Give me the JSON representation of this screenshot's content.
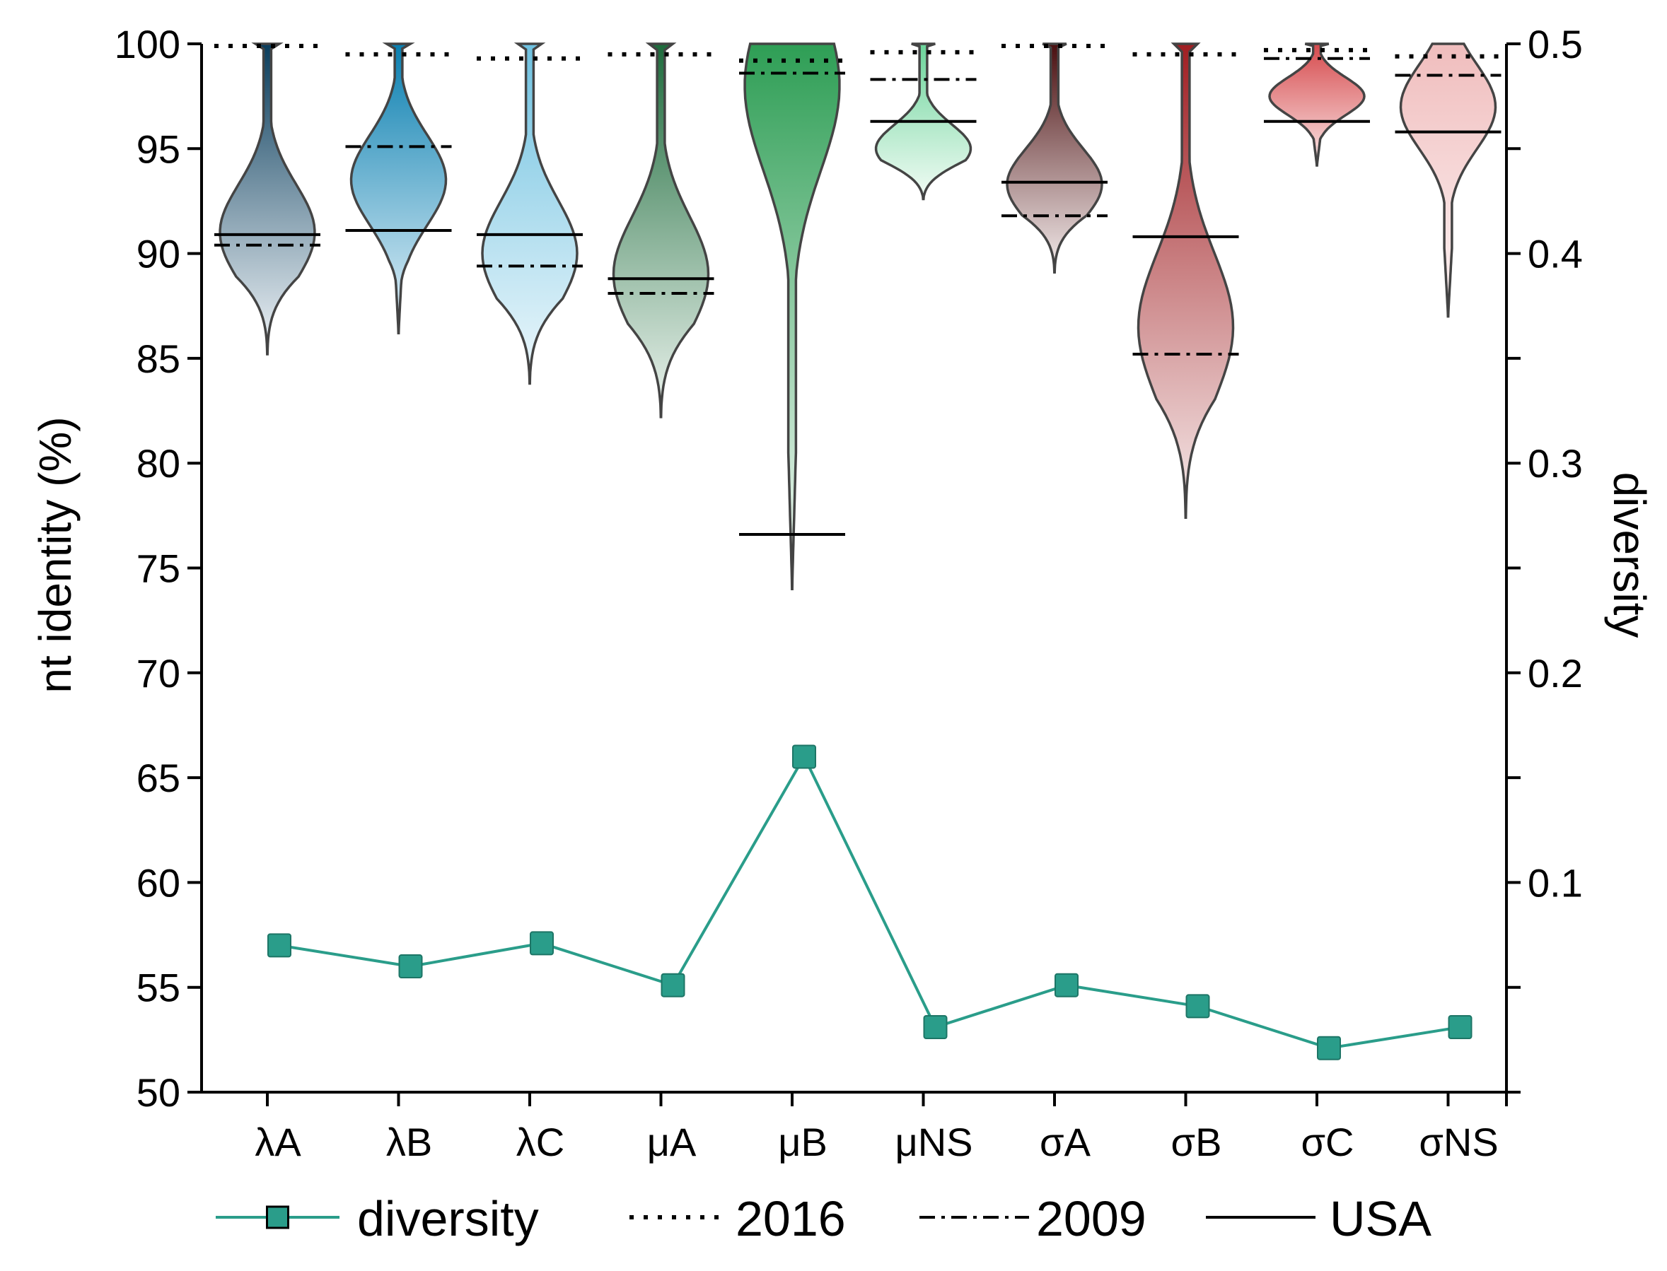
{
  "chart_data": {
    "type": "violin",
    "categories": [
      "λA",
      "λB",
      "λC",
      "μA",
      "μB",
      "μNS",
      "σA",
      "σB",
      "σC",
      "σNS"
    ],
    "y_left": {
      "label": "nt identity (%)",
      "range": [
        50,
        100
      ],
      "ticks": [
        "50",
        "55",
        "60",
        "65",
        "70",
        "75",
        "80",
        "85",
        "90",
        "95",
        "100"
      ]
    },
    "y_right": {
      "label": "diversity",
      "range": [
        0,
        0.5
      ],
      "ticks": [
        "0.1",
        "0.2",
        "0.3",
        "0.4",
        "0.5"
      ]
    },
    "violins": [
      {
        "category": "λA",
        "min": 85.2,
        "max": 100,
        "mode": 91.0,
        "color_top": "#0a3d5c",
        "color_bottom": "#f2f6f9"
      },
      {
        "category": "λB",
        "min": 86.2,
        "max": 100,
        "mode": 93.5,
        "color_top": "#0a7fb0",
        "color_bottom": "#e6f3fa"
      },
      {
        "category": "λC",
        "min": 83.8,
        "max": 100,
        "mode": 90.0,
        "color_top": "#6ec1e0",
        "color_bottom": "#eef8fc"
      },
      {
        "category": "μA",
        "min": 82.2,
        "max": 100,
        "mode": 89.0,
        "color_top": "#1e6b3c",
        "color_bottom": "#eef5f0"
      },
      {
        "category": "μB",
        "min": 74.0,
        "max": 100,
        "mode": 98.0,
        "color_top": "#2e9e55",
        "color_bottom": "#f7fcf8"
      },
      {
        "category": "μNS",
        "min": 92.6,
        "max": 100,
        "mode": 95.0,
        "color_top": "#6bd49a",
        "color_bottom": "#f3fcf6"
      },
      {
        "category": "σA",
        "min": 89.1,
        "max": 100,
        "mode": 93.3,
        "color_top": "#4a0f10",
        "color_bottom": "#f5eeee"
      },
      {
        "category": "σB",
        "min": 77.4,
        "max": 100,
        "mode": 86.5,
        "color_top": "#a01e22",
        "color_bottom": "#f7eded"
      },
      {
        "category": "σC",
        "min": 94.2,
        "max": 100,
        "mode": 97.5,
        "color_top": "#d64a4d",
        "color_bottom": "#fbeaea"
      },
      {
        "category": "σNS",
        "min": 87.0,
        "max": 100,
        "mode": 97.0,
        "color_top": "#f0bdbd",
        "color_bottom": "#fdf4f4"
      }
    ],
    "series": [
      {
        "name": "2016",
        "style": "dotted",
        "values": [
          99.9,
          99.5,
          99.3,
          99.5,
          99.2,
          99.6,
          99.9,
          99.5,
          99.7,
          99.4
        ]
      },
      {
        "name": "2009",
        "style": "dashdot",
        "values": [
          90.4,
          95.1,
          89.4,
          88.1,
          98.6,
          98.3,
          91.8,
          85.2,
          99.3,
          98.5
        ]
      },
      {
        "name": "USA",
        "style": "solid",
        "values": [
          90.9,
          91.1,
          90.9,
          88.8,
          76.6,
          96.3,
          93.4,
          90.8,
          96.3,
          95.8
        ]
      },
      {
        "name": "diversity",
        "style": "line-marker",
        "color": "#2a9d8a",
        "axis": "right",
        "values": [
          0.07,
          0.06,
          0.071,
          0.051,
          0.16,
          0.031,
          0.051,
          0.041,
          0.021,
          0.031
        ]
      }
    ],
    "legend": {
      "position": "bottom",
      "entries": [
        "diversity",
        "2016",
        "2009",
        "USA"
      ]
    },
    "grid": false
  }
}
